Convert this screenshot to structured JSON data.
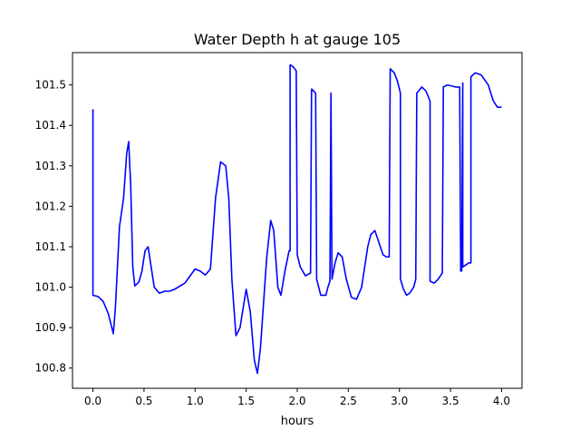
{
  "chart_data": {
    "type": "line",
    "title": "Water Depth h at gauge 105",
    "xlabel": "hours",
    "ylabel": "",
    "xlim": [
      -0.2,
      4.2
    ],
    "ylim": [
      100.75,
      101.58
    ],
    "x_ticks": [
      0.0,
      0.5,
      1.0,
      1.5,
      2.0,
      2.5,
      3.0,
      3.5,
      4.0
    ],
    "x_tick_labels": [
      "0.0",
      "0.5",
      "1.0",
      "1.5",
      "2.0",
      "2.5",
      "3.0",
      "3.5",
      "4.0"
    ],
    "y_ticks": [
      100.8,
      100.9,
      101.0,
      101.1,
      101.2,
      101.3,
      101.4,
      101.5
    ],
    "y_tick_labels": [
      "100.8",
      "100.9",
      "101.0",
      "101.1",
      "101.2",
      "101.3",
      "101.4",
      "101.5"
    ],
    "grid": false,
    "series": [
      {
        "name": "",
        "color": "#0000ff",
        "points": [
          [
            0.0,
            101.44
          ],
          [
            0.0,
            100.98
          ],
          [
            0.05,
            100.977
          ],
          [
            0.1,
            100.965
          ],
          [
            0.15,
            100.935
          ],
          [
            0.2,
            100.885
          ],
          [
            0.22,
            100.95
          ],
          [
            0.26,
            101.15
          ],
          [
            0.3,
            101.22
          ],
          [
            0.33,
            101.33
          ],
          [
            0.35,
            101.36
          ],
          [
            0.37,
            101.25
          ],
          [
            0.39,
            101.05
          ],
          [
            0.41,
            101.003
          ],
          [
            0.45,
            101.013
          ],
          [
            0.48,
            101.04
          ],
          [
            0.51,
            101.09
          ],
          [
            0.54,
            101.1
          ],
          [
            0.57,
            101.05
          ],
          [
            0.6,
            101.0
          ],
          [
            0.65,
            100.985
          ],
          [
            0.7,
            100.99
          ],
          [
            0.75,
            100.99
          ],
          [
            0.8,
            100.995
          ],
          [
            0.9,
            101.01
          ],
          [
            1.0,
            101.045
          ],
          [
            1.05,
            101.04
          ],
          [
            1.1,
            101.03
          ],
          [
            1.15,
            101.045
          ],
          [
            1.2,
            101.22
          ],
          [
            1.25,
            101.31
          ],
          [
            1.3,
            101.3
          ],
          [
            1.33,
            101.22
          ],
          [
            1.36,
            101.02
          ],
          [
            1.4,
            100.88
          ],
          [
            1.44,
            100.9
          ],
          [
            1.5,
            100.995
          ],
          [
            1.54,
            100.94
          ],
          [
            1.58,
            100.82
          ],
          [
            1.61,
            100.787
          ],
          [
            1.64,
            100.85
          ],
          [
            1.7,
            101.07
          ],
          [
            1.74,
            101.165
          ],
          [
            1.77,
            101.14
          ],
          [
            1.81,
            101.0
          ],
          [
            1.84,
            100.98
          ],
          [
            1.88,
            101.04
          ],
          [
            1.92,
            101.09
          ],
          [
            1.93,
            101.09
          ],
          [
            1.93,
            101.55
          ],
          [
            1.96,
            101.545
          ],
          [
            1.99,
            101.535
          ],
          [
            2.0,
            101.08
          ],
          [
            2.03,
            101.05
          ],
          [
            2.08,
            101.028
          ],
          [
            2.13,
            101.035
          ],
          [
            2.14,
            101.49
          ],
          [
            2.18,
            101.48
          ],
          [
            2.19,
            101.02
          ],
          [
            2.23,
            100.98
          ],
          [
            2.28,
            100.98
          ],
          [
            2.3,
            101.0
          ],
          [
            2.32,
            101.015
          ],
          [
            2.33,
            101.48
          ],
          [
            2.34,
            101.02
          ],
          [
            2.37,
            101.06
          ],
          [
            2.4,
            101.085
          ],
          [
            2.44,
            101.075
          ],
          [
            2.48,
            101.02
          ],
          [
            2.53,
            100.975
          ],
          [
            2.58,
            100.97
          ],
          [
            2.63,
            101.0
          ],
          [
            2.69,
            101.1
          ],
          [
            2.72,
            101.13
          ],
          [
            2.76,
            101.14
          ],
          [
            2.8,
            101.11
          ],
          [
            2.84,
            101.08
          ],
          [
            2.87,
            101.075
          ],
          [
            2.9,
            101.075
          ],
          [
            2.91,
            101.54
          ],
          [
            2.95,
            101.53
          ],
          [
            2.98,
            101.51
          ],
          [
            3.01,
            101.48
          ],
          [
            3.01,
            101.02
          ],
          [
            3.04,
            100.995
          ],
          [
            3.07,
            100.98
          ],
          [
            3.1,
            100.985
          ],
          [
            3.14,
            101.0
          ],
          [
            3.16,
            101.02
          ],
          [
            3.17,
            101.48
          ],
          [
            3.22,
            101.495
          ],
          [
            3.26,
            101.485
          ],
          [
            3.3,
            101.46
          ],
          [
            3.3,
            101.015
          ],
          [
            3.34,
            101.01
          ],
          [
            3.38,
            101.02
          ],
          [
            3.42,
            101.035
          ],
          [
            3.43,
            101.495
          ],
          [
            3.47,
            101.5
          ],
          [
            3.55,
            101.495
          ],
          [
            3.59,
            101.495
          ],
          [
            3.6,
            101.04
          ],
          [
            3.61,
            101.04
          ],
          [
            3.62,
            101.505
          ],
          [
            3.62,
            101.05
          ],
          [
            3.68,
            101.06
          ],
          [
            3.7,
            101.06
          ],
          [
            3.7,
            101.52
          ],
          [
            3.74,
            101.53
          ],
          [
            3.8,
            101.525
          ],
          [
            3.87,
            101.5
          ],
          [
            3.92,
            101.46
          ],
          [
            3.96,
            101.445
          ],
          [
            4.0,
            101.445
          ]
        ]
      }
    ]
  }
}
